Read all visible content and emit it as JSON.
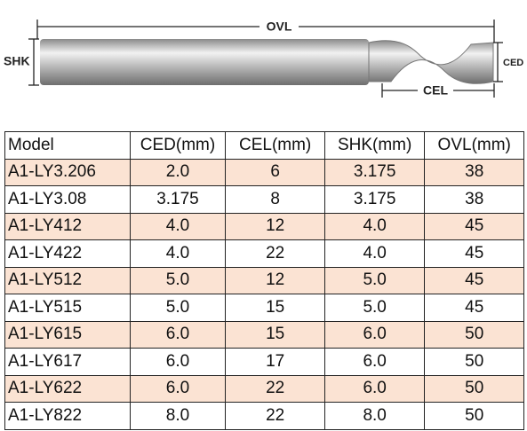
{
  "diagram": {
    "ovl": "OVL",
    "shk": "SHK",
    "ced": "CED",
    "cel": "CEL"
  },
  "table": {
    "header": [
      "Model",
      "CED(mm)",
      "CEL(mm)",
      "SHK(mm)",
      "OVL(mm)"
    ],
    "rows": [
      [
        "A1-LY3.206",
        "2.0",
        "6",
        "3.175",
        "38"
      ],
      [
        "A1-LY3.08",
        "3.175",
        "8",
        "3.175",
        "38"
      ],
      [
        "A1-LY412",
        "4.0",
        "12",
        "4.0",
        "45"
      ],
      [
        "A1-LY422",
        "4.0",
        "22",
        "4.0",
        "45"
      ],
      [
        "A1-LY512",
        "5.0",
        "12",
        "5.0",
        "45"
      ],
      [
        "A1-LY515",
        "5.0",
        "15",
        "5.0",
        "45"
      ],
      [
        "A1-LY615",
        "6.0",
        "15",
        "6.0",
        "50"
      ],
      [
        "A1-LY617",
        "6.0",
        "17",
        "6.0",
        "50"
      ],
      [
        "A1-LY622",
        "6.0",
        "22",
        "6.0",
        "50"
      ],
      [
        "A1-LY822",
        "8.0",
        "22",
        "8.0",
        "50"
      ]
    ]
  }
}
